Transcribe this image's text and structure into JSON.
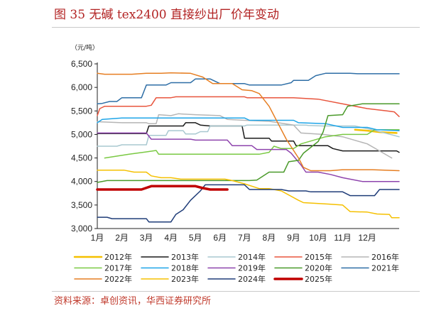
{
  "figure": {
    "title": "图 35 无碱 tex2400 直接纱出厂价年变动",
    "source": "资料来源：卓创资讯，华西证券研究所"
  },
  "chart_data": {
    "type": "line",
    "unit_label": "（元/吨）",
    "ylim": [
      3000,
      6500
    ],
    "yticks": [
      "6,500",
      "6,000",
      "5,500",
      "5,000",
      "4,500",
      "4,000",
      "3,500",
      "3,000"
    ],
    "ytick_values": [
      6500,
      6000,
      5500,
      5000,
      4500,
      4000,
      3500,
      3000
    ],
    "xlim": [
      1,
      13.3
    ],
    "xtick_labels": [
      "1月",
      "2月",
      "3月",
      "4月",
      "5月",
      "6月",
      "7月",
      "8月",
      "9月",
      "10月",
      "11月",
      "12月"
    ],
    "xtick_values": [
      1,
      2,
      3,
      4,
      5,
      6,
      7,
      8,
      9,
      10,
      11,
      12
    ],
    "grid": false,
    "legend_position": "bottom",
    "series": [
      {
        "name": "2012年",
        "color": "#f5c000",
        "width": 2.5,
        "points": [
          [
            11.5,
            5100
          ],
          [
            12,
            5080
          ],
          [
            12.5,
            5050
          ],
          [
            13.2,
            5030
          ]
        ]
      },
      {
        "name": "2013年",
        "color": "#1a1a1a",
        "width": 1.5,
        "points": [
          [
            1,
            5020
          ],
          [
            3,
            5020
          ],
          [
            3.1,
            5180
          ],
          [
            4.5,
            5180
          ],
          [
            4.6,
            5250
          ],
          [
            5,
            5250
          ],
          [
            5.2,
            5200
          ],
          [
            5.6,
            5180
          ],
          [
            6.9,
            5180
          ],
          [
            7,
            4920
          ],
          [
            8,
            4920
          ],
          [
            8.1,
            4860
          ],
          [
            9,
            4860
          ],
          [
            9.1,
            4760
          ],
          [
            10.4,
            4760
          ],
          [
            10.6,
            4700
          ],
          [
            11,
            4650
          ],
          [
            13.2,
            4650
          ],
          [
            13.3,
            4620
          ]
        ]
      },
      {
        "name": "2014年",
        "color": "#a8c8d0",
        "width": 1.5,
        "points": [
          [
            1,
            4750
          ],
          [
            1.8,
            4750
          ],
          [
            2,
            4780
          ],
          [
            3,
            4780
          ],
          [
            3.1,
            4980
          ],
          [
            3.8,
            4980
          ],
          [
            3.9,
            5080
          ],
          [
            4.5,
            5080
          ],
          [
            4.6,
            5010
          ],
          [
            5,
            5010
          ],
          [
            5.2,
            5060
          ],
          [
            5.5,
            5060
          ],
          [
            5.6,
            5180
          ],
          [
            7,
            5180
          ],
          [
            7.1,
            5200
          ],
          [
            9.5,
            5200
          ],
          [
            9.6,
            5190
          ],
          [
            10.2,
            5180
          ],
          [
            11.5,
            5180
          ],
          [
            12.2,
            5100
          ],
          [
            12.8,
            5020
          ],
          [
            13.3,
            4950
          ]
        ]
      },
      {
        "name": "2015年",
        "color": "#e8553d",
        "width": 1.5,
        "points": [
          [
            1,
            5400
          ],
          [
            1.1,
            5550
          ],
          [
            1.3,
            5600
          ],
          [
            3,
            5600
          ],
          [
            3.2,
            5620
          ],
          [
            3.4,
            5780
          ],
          [
            4,
            5780
          ],
          [
            4.2,
            5800
          ],
          [
            7,
            5800
          ],
          [
            7.1,
            5780
          ],
          [
            9,
            5780
          ],
          [
            10,
            5750
          ],
          [
            12,
            5550
          ],
          [
            12.8,
            5500
          ],
          [
            13.1,
            5480
          ],
          [
            13.3,
            5380
          ]
        ]
      },
      {
        "name": "2016年",
        "color": "#b5b5b5",
        "width": 1.5,
        "points": [
          [
            1,
            5270
          ],
          [
            2,
            5250
          ],
          [
            3,
            5250
          ],
          [
            3.1,
            5230
          ],
          [
            3.4,
            5230
          ],
          [
            3.5,
            5420
          ],
          [
            4,
            5400
          ],
          [
            4.3,
            5440
          ],
          [
            5,
            5420
          ],
          [
            6,
            5400
          ],
          [
            6.3,
            5320
          ],
          [
            7,
            5300
          ],
          [
            8,
            5280
          ],
          [
            9,
            5200
          ],
          [
            9.3,
            5030
          ],
          [
            10.2,
            5000
          ],
          [
            11,
            4950
          ],
          [
            12,
            4800
          ],
          [
            12.5,
            4650
          ],
          [
            13,
            4500
          ]
        ]
      },
      {
        "name": "2017年",
        "color": "#7ac943",
        "width": 1.5,
        "points": [
          [
            1.3,
            4500
          ],
          [
            2.3,
            4580
          ],
          [
            3,
            4630
          ],
          [
            3.4,
            4660
          ],
          [
            3.5,
            4580
          ],
          [
            5,
            4580
          ],
          [
            7,
            4580
          ],
          [
            7.6,
            4580
          ],
          [
            8,
            4620
          ],
          [
            8.2,
            4750
          ],
          [
            8.5,
            4700
          ],
          [
            9,
            4700
          ],
          [
            9.3,
            4800
          ],
          [
            10.3,
            4950
          ],
          [
            11,
            5000
          ],
          [
            12,
            5000
          ],
          [
            12.3,
            5100
          ],
          [
            13.3,
            5100
          ]
        ]
      },
      {
        "name": "2018年",
        "color": "#1ea5e8",
        "width": 1.5,
        "points": [
          [
            1,
            5250
          ],
          [
            1.2,
            5320
          ],
          [
            2,
            5350
          ],
          [
            3,
            5350
          ],
          [
            6,
            5350
          ],
          [
            6.2,
            5350
          ],
          [
            7,
            5350
          ],
          [
            7.2,
            5300
          ],
          [
            9,
            5300
          ],
          [
            9.2,
            5250
          ],
          [
            10.3,
            5230
          ],
          [
            11,
            5150
          ],
          [
            12,
            5150
          ],
          [
            12.4,
            5100
          ],
          [
            13.3,
            5080
          ]
        ]
      },
      {
        "name": "2019年",
        "color": "#8e44ad",
        "width": 1.5,
        "points": [
          [
            1,
            5030
          ],
          [
            2,
            5030
          ],
          [
            3,
            5030
          ],
          [
            3.2,
            4900
          ],
          [
            4.8,
            4900
          ],
          [
            5,
            4880
          ],
          [
            6.3,
            4880
          ],
          [
            6.5,
            4760
          ],
          [
            7.3,
            4760
          ],
          [
            7.5,
            4680
          ],
          [
            8.7,
            4680
          ],
          [
            8.9,
            4600
          ],
          [
            9.3,
            4350
          ],
          [
            9.5,
            4200
          ],
          [
            10,
            4200
          ],
          [
            10.5,
            4150
          ],
          [
            11,
            4080
          ],
          [
            11.8,
            4000
          ],
          [
            13.3,
            4000
          ]
        ]
      },
      {
        "name": "2020年",
        "color": "#4a9a2a",
        "width": 1.5,
        "points": [
          [
            1,
            3980
          ],
          [
            1.4,
            4020
          ],
          [
            2,
            4020
          ],
          [
            7.2,
            4020
          ],
          [
            7.5,
            4030
          ],
          [
            8,
            4200
          ],
          [
            8.6,
            4200
          ],
          [
            8.8,
            4420
          ],
          [
            9.2,
            4450
          ],
          [
            9.4,
            4600
          ],
          [
            10,
            4850
          ],
          [
            10.2,
            5050
          ],
          [
            10.4,
            5400
          ],
          [
            11,
            5420
          ],
          [
            11.2,
            5600
          ],
          [
            11.8,
            5650
          ],
          [
            13.3,
            5650
          ]
        ]
      },
      {
        "name": "2021年",
        "color": "#2e6ea6",
        "width": 1.5,
        "points": [
          [
            1,
            5650
          ],
          [
            1.2,
            5660
          ],
          [
            1.5,
            5700
          ],
          [
            1.8,
            5700
          ],
          [
            2,
            5780
          ],
          [
            2.8,
            5780
          ],
          [
            3,
            6050
          ],
          [
            3.8,
            6050
          ],
          [
            4,
            6100
          ],
          [
            4.8,
            6100
          ],
          [
            5,
            6180
          ],
          [
            5.6,
            6180
          ],
          [
            6,
            6080
          ],
          [
            7,
            6080
          ],
          [
            7.2,
            6050
          ],
          [
            8,
            6050
          ],
          [
            8.5,
            6050
          ],
          [
            8.9,
            6100
          ],
          [
            9,
            6150
          ],
          [
            9.6,
            6150
          ],
          [
            9.9,
            6250
          ],
          [
            10.3,
            6300
          ],
          [
            11.3,
            6300
          ],
          [
            11.6,
            6290
          ],
          [
            13.3,
            6290
          ]
        ]
      },
      {
        "name": "2022年",
        "color": "#e67e22",
        "width": 1.5,
        "points": [
          [
            1,
            6300
          ],
          [
            1.3,
            6280
          ],
          [
            2.4,
            6280
          ],
          [
            3,
            6300
          ],
          [
            3.6,
            6300
          ],
          [
            4,
            6310
          ],
          [
            4.8,
            6300
          ],
          [
            5.3,
            6220
          ],
          [
            5.7,
            6080
          ],
          [
            6.5,
            6080
          ],
          [
            6.9,
            5950
          ],
          [
            7.3,
            5930
          ],
          [
            7.6,
            5870
          ],
          [
            8,
            5600
          ],
          [
            8.4,
            5200
          ],
          [
            8.7,
            4900
          ],
          [
            9.2,
            4500
          ],
          [
            9.4,
            4300
          ],
          [
            9.7,
            4230
          ],
          [
            10.5,
            4230
          ],
          [
            11,
            4250
          ],
          [
            12.2,
            4250
          ],
          [
            13.3,
            4230
          ]
        ]
      },
      {
        "name": "2023年",
        "color": "#f5c000",
        "width": 1.5,
        "points": [
          [
            1,
            4240
          ],
          [
            2.1,
            4240
          ],
          [
            2.5,
            4200
          ],
          [
            3,
            4200
          ],
          [
            3.2,
            4120
          ],
          [
            3.6,
            4080
          ],
          [
            4,
            4080
          ],
          [
            4.4,
            4050
          ],
          [
            6.2,
            4050
          ],
          [
            6.5,
            4020
          ],
          [
            7,
            3950
          ],
          [
            7.6,
            3850
          ],
          [
            8,
            3850
          ],
          [
            8.5,
            3800
          ],
          [
            9.2,
            3600
          ],
          [
            9.4,
            3550
          ],
          [
            10.4,
            3520
          ],
          [
            11,
            3500
          ],
          [
            11.3,
            3360
          ],
          [
            12,
            3350
          ],
          [
            12.4,
            3310
          ],
          [
            12.9,
            3300
          ],
          [
            13,
            3230
          ],
          [
            13.3,
            3230
          ]
        ]
      },
      {
        "name": "2024年",
        "color": "#1f3c78",
        "width": 1.5,
        "points": [
          [
            1,
            3240
          ],
          [
            1.4,
            3240
          ],
          [
            1.6,
            3210
          ],
          [
            3,
            3210
          ],
          [
            3.1,
            3140
          ],
          [
            4,
            3140
          ],
          [
            4.2,
            3300
          ],
          [
            4.5,
            3400
          ],
          [
            4.8,
            3600
          ],
          [
            5.2,
            3800
          ],
          [
            5.4,
            3930
          ],
          [
            7,
            3930
          ],
          [
            7.2,
            3830
          ],
          [
            8.5,
            3830
          ],
          [
            8.8,
            3800
          ],
          [
            9.5,
            3800
          ],
          [
            9.7,
            3780
          ],
          [
            11,
            3780
          ],
          [
            11.3,
            3700
          ],
          [
            12.3,
            3700
          ],
          [
            12.5,
            3830
          ],
          [
            13.3,
            3830
          ]
        ]
      },
      {
        "name": "2025年",
        "color": "#c00000",
        "width": 3.5,
        "points": [
          [
            1,
            3830
          ],
          [
            2.8,
            3830
          ],
          [
            3.2,
            3900
          ],
          [
            5,
            3900
          ],
          [
            5.3,
            3860
          ],
          [
            5.6,
            3830
          ],
          [
            6.3,
            3830
          ]
        ]
      }
    ],
    "legend_order": [
      0,
      1,
      2,
      3,
      4,
      5,
      6,
      7,
      8,
      9,
      10,
      11,
      12,
      13
    ]
  }
}
